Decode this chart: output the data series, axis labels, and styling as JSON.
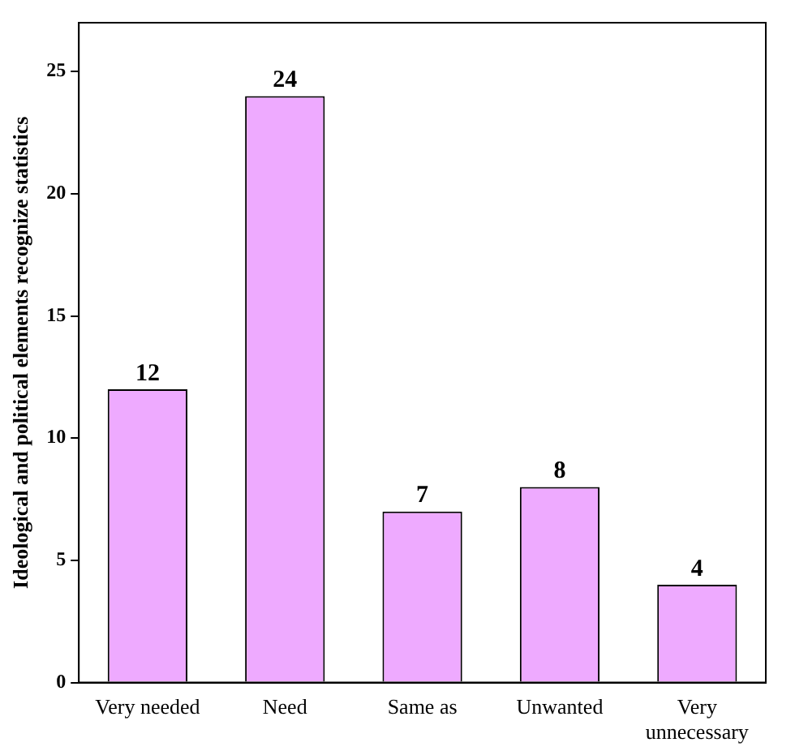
{
  "chart_data": {
    "type": "bar",
    "ylabel": "Ideological and political elements recognize statistics",
    "categories": [
      "Very needed",
      "Need",
      "Same as",
      "Unwanted",
      "Very unnecessary"
    ],
    "values": [
      12,
      24,
      7,
      8,
      4
    ],
    "color": "#eeaaff",
    "data_labels": true,
    "grid": false,
    "legend": false,
    "ylim": [
      0,
      27
    ],
    "yticks": [
      0,
      5,
      10,
      15,
      20,
      25
    ]
  }
}
